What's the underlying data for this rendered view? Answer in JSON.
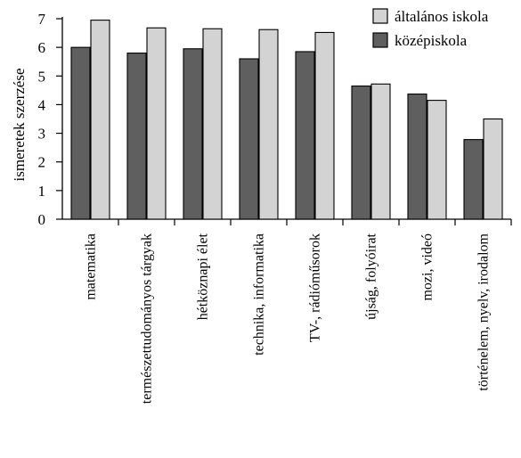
{
  "chart_data": {
    "type": "bar",
    "ylabel": "ismeretek szerzése",
    "xlabel": "",
    "ylim": [
      0,
      7
    ],
    "yticks": [
      0,
      1,
      2,
      3,
      4,
      5,
      6,
      7
    ],
    "grid": false,
    "legend_position": "top-right",
    "categories": [
      "matematika",
      "természettudományos tárgyak",
      "hétköznapi élet",
      "technika, informatika",
      "TV-, rádióműsorok",
      "újság, folyóirat",
      "mozi, videó",
      "történelem, nyelv, irodalom"
    ],
    "series": [
      {
        "name": "középiskola",
        "color": "#5f5f5f",
        "values": [
          6.0,
          5.8,
          5.95,
          5.6,
          5.85,
          4.65,
          4.37,
          2.78
        ]
      },
      {
        "name": "általános iskola",
        "color": "#d3d3d3",
        "values": [
          6.95,
          6.68,
          6.65,
          6.62,
          6.52,
          4.72,
          4.15,
          3.5
        ]
      }
    ],
    "legend_order": [
      "általános iskola",
      "középiskola"
    ]
  }
}
